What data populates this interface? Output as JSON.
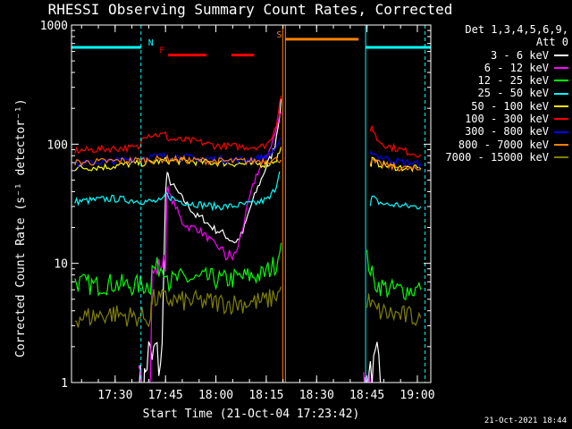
{
  "chart_data": {
    "type": "line",
    "title": "RHESSI Observing Summary Count Rates, Corrected",
    "xlabel": "Start Time (21-Oct-04 17:23:42)",
    "ylabel": "Corrected Count Rate (s⁻¹ detector⁻¹)",
    "yscale": "log",
    "ylim": [
      1,
      1000
    ],
    "xlim_minutes": [
      -7,
      100
    ],
    "x_ticks": [
      {
        "t": 6,
        "label": "17:30"
      },
      {
        "t": 21,
        "label": "17:45"
      },
      {
        "t": 36,
        "label": "18:00"
      },
      {
        "t": 51,
        "label": "18:15"
      },
      {
        "t": 66,
        "label": "18:30"
      },
      {
        "t": 81,
        "label": "18:45"
      },
      {
        "t": 96,
        "label": "19:00"
      }
    ],
    "y_ticks": [
      {
        "v": 1,
        "label": "1"
      },
      {
        "v": 10,
        "label": "10"
      },
      {
        "v": 100,
        "label": "100"
      },
      {
        "v": 1000,
        "label": "1000"
      }
    ],
    "detectors": "Det 1,3,4,5,6,9,",
    "attenuator": "Att 0",
    "series": [
      {
        "name": "3 - 6 keV",
        "color": "#ffffff",
        "x": [
          13,
          14.5,
          15,
          16,
          17,
          18,
          19,
          20,
          21,
          21.5,
          22,
          24,
          26,
          28,
          30,
          32,
          34,
          36,
          38,
          40,
          42,
          44,
          46,
          48,
          50,
          51.5,
          52.5,
          53.5,
          55,
          55.9,
          80,
          81,
          82,
          83,
          84,
          85
        ],
        "y": [
          1,
          1,
          1.2,
          1.8,
          1.5,
          2,
          1.4,
          1.8,
          40,
          58,
          50,
          42,
          35,
          30,
          25,
          24,
          21,
          19,
          18,
          16,
          15,
          18,
          28,
          40,
          55,
          70,
          80,
          95,
          180,
          280,
          1,
          1,
          1.4,
          1.2,
          1.6,
          1
        ]
      },
      {
        "name": "6 - 12 keV",
        "color": "#ff00ff",
        "x": [
          13,
          16.5,
          17,
          20,
          21,
          21.5,
          22,
          24,
          26,
          28,
          30,
          32,
          34,
          36,
          38,
          40,
          42,
          44,
          46,
          48,
          50,
          51.5,
          52.5,
          53.5,
          55,
          55.9,
          80,
          81,
          81.5,
          82,
          83
        ],
        "y": [
          1,
          1,
          8,
          10,
          10,
          45,
          38,
          30,
          22,
          20,
          20,
          18,
          16,
          14,
          13,
          11,
          12,
          20,
          35,
          55,
          70,
          85,
          100,
          120,
          170,
          210,
          1,
          1,
          1,
          1,
          1
        ]
      },
      {
        "name": "12 - 25 keV",
        "color": "#00ff00",
        "x": [
          -6,
          0,
          5,
          10,
          16.5,
          17,
          21,
          22,
          26,
          30,
          34,
          38,
          42,
          46,
          50,
          52,
          54,
          55,
          55.9,
          81,
          82,
          83,
          85,
          88,
          91,
          94,
          97
        ],
        "y": [
          7,
          6.5,
          6.8,
          6.5,
          6.6,
          9,
          9.5,
          7,
          7.5,
          7.3,
          7.5,
          7.2,
          7.5,
          7.8,
          8,
          9,
          10,
          13,
          16,
          11,
          9,
          7,
          6.5,
          6,
          6,
          6,
          6
        ]
      },
      {
        "name": "25 - 50 keV",
        "color": "#00ffff",
        "x": [
          -6,
          0,
          5,
          10,
          16,
          20,
          21,
          24,
          28,
          32,
          36,
          40,
          44,
          48,
          52,
          54,
          55.5,
          82,
          82.5,
          84,
          87,
          90,
          93,
          97
        ],
        "y": [
          33,
          34,
          35,
          34,
          33,
          33,
          38,
          34,
          32,
          31,
          30,
          30,
          31,
          32,
          35,
          45,
          75,
          30,
          36,
          33,
          31,
          31,
          30,
          30
        ]
      },
      {
        "name": "50 - 100 keV",
        "color": "#ffff00",
        "x": [
          -6,
          0,
          5,
          10,
          16,
          21,
          26,
          31,
          36,
          41,
          46,
          50,
          52,
          54,
          55.9,
          82,
          82.5,
          84,
          87,
          90,
          93,
          97
        ],
        "y": [
          63,
          64,
          65,
          68,
          70,
          73,
          72,
          71,
          70,
          69,
          68,
          68,
          69,
          75,
          100,
          65,
          74,
          69,
          66,
          64,
          63,
          62
        ]
      },
      {
        "name": "100 - 300 keV",
        "color": "#ff0000",
        "x": [
          -6,
          0,
          5,
          10,
          13.5,
          14,
          21,
          22,
          26,
          30,
          36,
          40,
          46,
          50,
          52,
          54,
          55,
          55.9,
          82,
          82.5,
          83,
          84,
          86,
          88,
          91,
          94,
          97
        ],
        "y": [
          88,
          90,
          92,
          93,
          94,
          120,
          120,
          110,
          108,
          106,
          97,
          96,
          95,
          96,
          105,
          150,
          220,
          320,
          120,
          140,
          128,
          110,
          100,
          95,
          90,
          85,
          82
        ]
      },
      {
        "name": "300 - 800 keV",
        "color": "#0000ff",
        "x": [
          -6,
          0,
          5,
          10,
          16,
          21,
          26,
          31,
          36,
          41,
          46,
          50,
          52,
          54,
          55.9,
          82,
          82.5,
          84,
          87,
          90,
          93,
          97
        ],
        "y": [
          68,
          70,
          72,
          75,
          78,
          80,
          78,
          76,
          75,
          74,
          74,
          78,
          82,
          95,
          110,
          78,
          88,
          80,
          76,
          72,
          70,
          68
        ]
      },
      {
        "name": "800 - 7000 keV",
        "color": "#ff8000",
        "x": [
          -6,
          0,
          5,
          10,
          16,
          21,
          26,
          31,
          36,
          41,
          46,
          50,
          54,
          55.9,
          82,
          84,
          87,
          90,
          93,
          97
        ],
        "y": [
          70,
          71,
          72,
          73,
          74,
          75,
          74,
          73,
          72,
          72,
          72,
          73,
          74,
          75,
          72,
          69,
          66,
          64,
          62,
          61
        ]
      },
      {
        "name": "7000 - 15000 keV",
        "color": "#808000",
        "x": [
          -6,
          0,
          5,
          10,
          16.5,
          17,
          21,
          26,
          31,
          36,
          41,
          46,
          50,
          52,
          54,
          55.9,
          81,
          82,
          84,
          87,
          90,
          93,
          97
        ],
        "y": [
          3.5,
          3.6,
          3.8,
          3.6,
          3.5,
          5,
          5,
          4.8,
          4.8,
          4.7,
          4.6,
          4.7,
          4.8,
          5,
          5.5,
          6,
          5,
          4.5,
          4,
          3.8,
          3.7,
          3.6,
          3.5
        ]
      }
    ],
    "flag_bars": [
      {
        "label": "N",
        "color": "#00ffff",
        "y": 650,
        "segments": [
          [
            -7,
            13.7
          ],
          [
            80.6,
            100
          ]
        ]
      },
      {
        "label": "F",
        "color": "#ff0000",
        "y": 560,
        "segments": [
          [
            21.8,
            33.2
          ],
          [
            40.6,
            47.4
          ]
        ]
      },
      {
        "label": "S",
        "color": "#ff8000",
        "y": 760,
        "segments": [
          [
            56.7,
            78.5
          ]
        ]
      }
    ],
    "vertical_lines": [
      {
        "t": -7,
        "color": "#00ffff",
        "style": "solid"
      },
      {
        "t": 13.7,
        "color": "#00ffff",
        "style": "dashed"
      },
      {
        "t": 55.9,
        "color": "#ff8000",
        "style": "solid"
      },
      {
        "t": 56.7,
        "color": "#ff8000",
        "style": "solid"
      },
      {
        "t": 80.6,
        "color": "#00ffff",
        "style": "solid"
      },
      {
        "t": 98.3,
        "color": "#00ffff",
        "style": "dashed"
      }
    ]
  },
  "footer_timestamp": "21-Oct-2021 18:44"
}
